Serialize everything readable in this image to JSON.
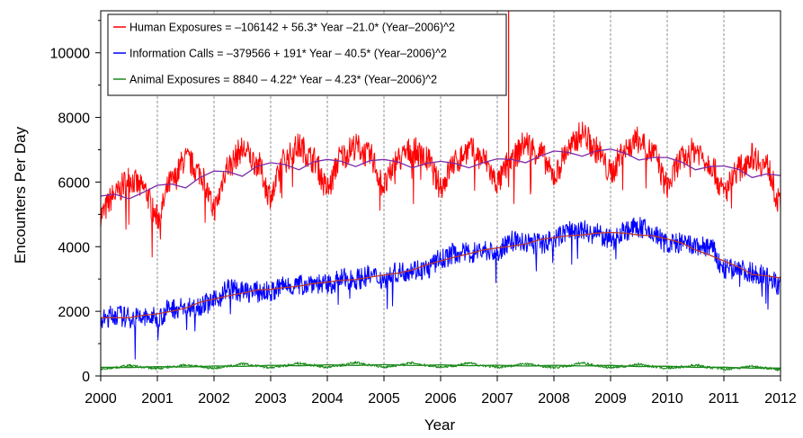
{
  "chart_data": {
    "type": "line",
    "xlabel": "Year",
    "ylabel": "Encounters Per Day",
    "xlim": [
      2000,
      2012
    ],
    "ylim": [
      0,
      11300
    ],
    "x_ticks": [
      2000,
      2001,
      2002,
      2003,
      2004,
      2005,
      2006,
      2007,
      2008,
      2009,
      2010,
      2011,
      2012
    ],
    "y_ticks": [
      0,
      2000,
      4000,
      6000,
      8000,
      10000
    ],
    "vertical_gridlines": true,
    "legend_position": "top-left",
    "series": [
      {
        "name": "Human Exposures  = –106142 + 56.3* Year –21.0* (Year–2006)^2",
        "color": "#ff0000",
        "trend_color": "#7a2aa8",
        "x": [
          2000.0,
          2000.25,
          2000.5,
          2000.75,
          2001.0,
          2001.25,
          2001.5,
          2001.75,
          2002.0,
          2002.25,
          2002.5,
          2002.75,
          2003.0,
          2003.25,
          2003.5,
          2003.75,
          2004.0,
          2004.25,
          2004.5,
          2004.75,
          2005.0,
          2005.25,
          2005.5,
          2005.75,
          2006.0,
          2006.25,
          2006.5,
          2006.75,
          2007.0,
          2007.25,
          2007.5,
          2007.75,
          2008.0,
          2008.25,
          2008.5,
          2008.75,
          2009.0,
          2009.25,
          2009.5,
          2009.75,
          2010.0,
          2010.25,
          2010.5,
          2010.75,
          2011.0,
          2011.25,
          2011.5,
          2011.75,
          2012.0
        ],
        "values": [
          5000,
          5600,
          6100,
          5800,
          4900,
          6000,
          6700,
          6300,
          5200,
          6500,
          7000,
          6600,
          5600,
          6700,
          7100,
          6700,
          5800,
          6800,
          7100,
          6800,
          5900,
          6700,
          7000,
          6700,
          5900,
          6600,
          7000,
          6700,
          6000,
          6700,
          7200,
          6900,
          6200,
          7000,
          7500,
          7000,
          6300,
          7000,
          7300,
          6900,
          5900,
          6700,
          7000,
          6600,
          5700,
          6400,
          6800,
          6500,
          5300
        ]
      },
      {
        "name": "Information Calls = –379566 + 191* Year – 40.5* (Year–2006)^2",
        "color": "#0000ff",
        "trend_color": "#c0392b",
        "x": [
          2000.0,
          2000.25,
          2000.5,
          2000.75,
          2001.0,
          2001.25,
          2001.5,
          2001.75,
          2002.0,
          2002.25,
          2002.5,
          2002.75,
          2003.0,
          2003.25,
          2003.5,
          2003.75,
          2004.0,
          2004.25,
          2004.5,
          2004.75,
          2005.0,
          2005.25,
          2005.5,
          2005.75,
          2006.0,
          2006.25,
          2006.5,
          2006.75,
          2007.0,
          2007.25,
          2007.5,
          2007.75,
          2008.0,
          2008.25,
          2008.5,
          2008.75,
          2009.0,
          2009.25,
          2009.5,
          2009.75,
          2010.0,
          2010.25,
          2010.5,
          2010.75,
          2011.0,
          2011.25,
          2011.5,
          2011.75,
          2012.0
        ],
        "values": [
          1700,
          1900,
          1800,
          1800,
          1800,
          2100,
          2100,
          2200,
          2300,
          2700,
          2600,
          2600,
          2600,
          2800,
          2800,
          2900,
          2800,
          3000,
          3000,
          3100,
          3000,
          3200,
          3300,
          3300,
          3600,
          3800,
          3800,
          3900,
          3800,
          4200,
          4100,
          4100,
          4200,
          4500,
          4500,
          4400,
          4200,
          4500,
          4600,
          4400,
          4100,
          4100,
          4000,
          4000,
          3300,
          3300,
          3200,
          3100,
          2800
        ]
      },
      {
        "name": "Animal Exposures = 8840 – 4.22* Year – 4.23* (Year–2006)^2",
        "color": "#1a8a1a",
        "trend_color": "#1a8a1a",
        "x": [
          2000.0,
          2000.25,
          2000.5,
          2000.75,
          2001.0,
          2001.25,
          2001.5,
          2001.75,
          2002.0,
          2002.25,
          2002.5,
          2002.75,
          2003.0,
          2003.25,
          2003.5,
          2003.75,
          2004.0,
          2004.25,
          2004.5,
          2004.75,
          2005.0,
          2005.25,
          2005.5,
          2005.75,
          2006.0,
          2006.25,
          2006.5,
          2006.75,
          2007.0,
          2007.25,
          2007.5,
          2007.75,
          2008.0,
          2008.25,
          2008.5,
          2008.75,
          2009.0,
          2009.25,
          2009.5,
          2009.75,
          2010.0,
          2010.25,
          2010.5,
          2010.75,
          2011.0,
          2011.25,
          2011.5,
          2011.75,
          2012.0
        ],
        "values": [
          220,
          260,
          320,
          270,
          230,
          280,
          340,
          290,
          240,
          300,
          370,
          310,
          260,
          320,
          390,
          330,
          270,
          330,
          410,
          340,
          280,
          330,
          400,
          330,
          280,
          320,
          390,
          320,
          270,
          310,
          380,
          310,
          260,
          310,
          400,
          320,
          260,
          300,
          360,
          290,
          240,
          280,
          330,
          260,
          210,
          250,
          300,
          240,
          190
        ]
      }
    ],
    "annotations": [
      {
        "series": "Human Exposures",
        "x": 2007.2,
        "y": 11300
      }
    ]
  }
}
